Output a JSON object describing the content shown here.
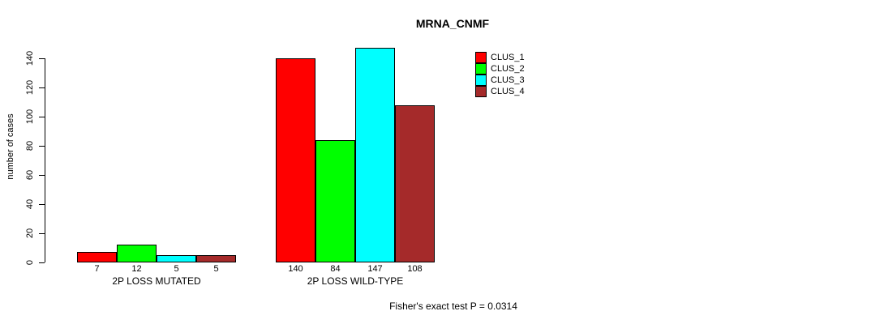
{
  "chart_data": {
    "type": "bar",
    "title": "MRNA_CNMF",
    "ylabel": "number of cases",
    "xlabel": "",
    "ylim": [
      0,
      140
    ],
    "yticks": [
      0,
      20,
      40,
      60,
      80,
      100,
      120,
      140
    ],
    "grid": false,
    "show_bar_values": true,
    "categories": [
      "2P LOSS MUTATED",
      "2P LOSS WILD-TYPE"
    ],
    "series": [
      {
        "name": "CLUS_1",
        "color": "#ff0000",
        "values": [
          7,
          140
        ]
      },
      {
        "name": "CLUS_2",
        "color": "#00ff00",
        "values": [
          12,
          84
        ]
      },
      {
        "name": "CLUS_3",
        "color": "#00ffff",
        "values": [
          5,
          147
        ]
      },
      {
        "name": "CLUS_4",
        "color": "#a52a2a",
        "values": [
          5,
          108
        ]
      }
    ],
    "legend": {
      "position": "top-right",
      "entries": [
        "CLUS_1",
        "CLUS_2",
        "CLUS_3",
        "CLUS_4"
      ]
    },
    "annotation": "Fisher's exact test P = 0.0314",
    "bar_border_color": "#000000",
    "background_color": "#ffffff"
  }
}
